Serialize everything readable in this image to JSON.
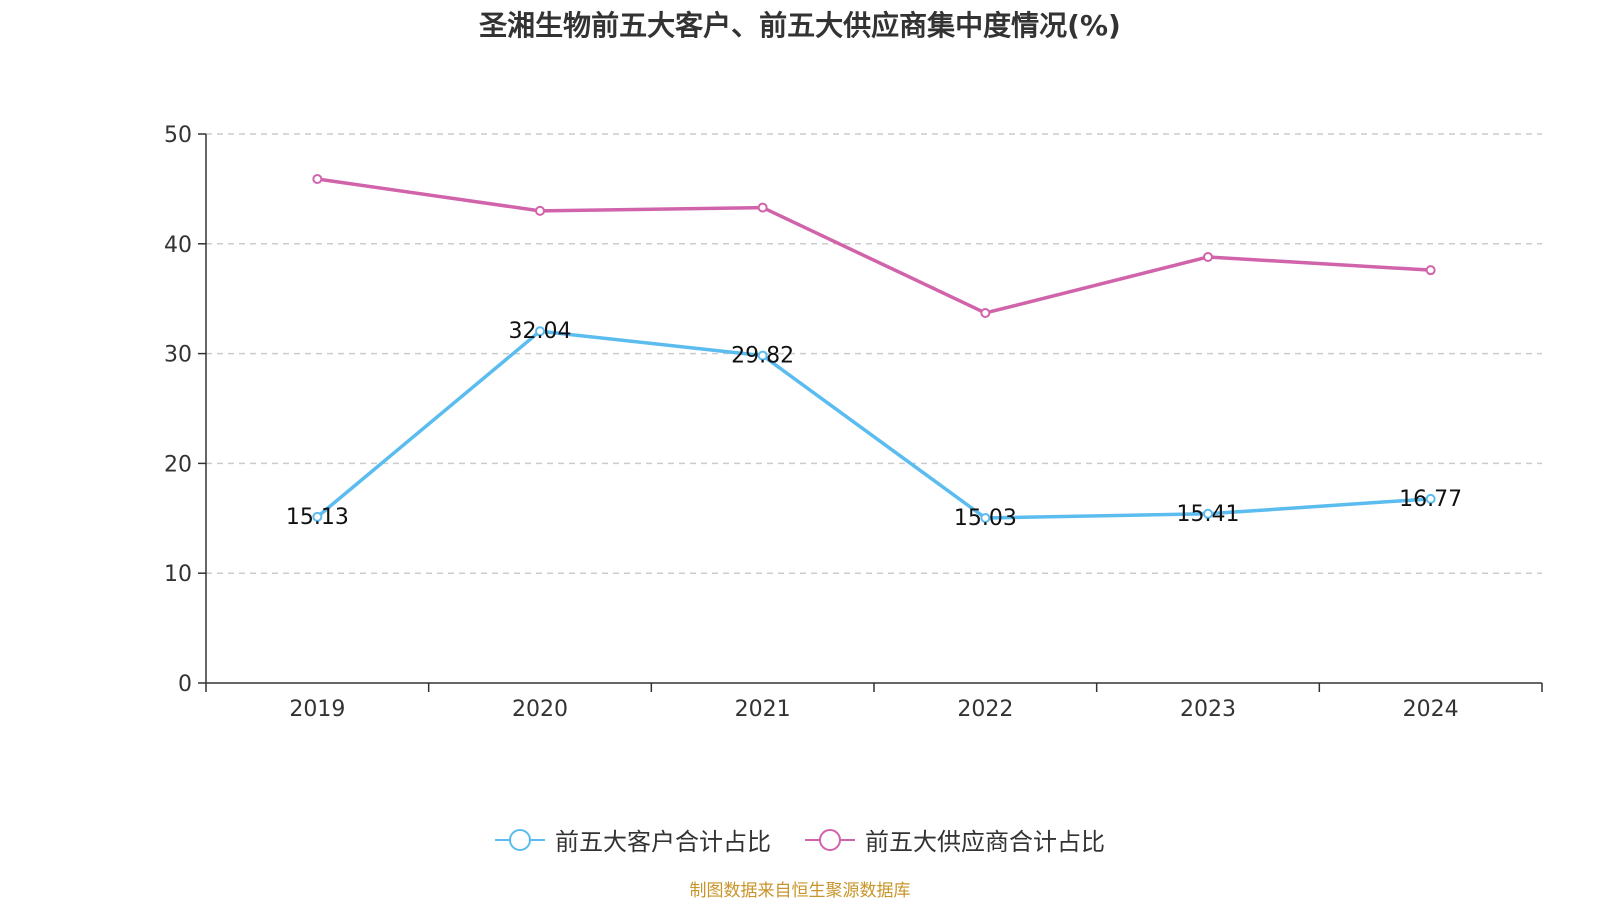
{
  "chart_data": {
    "type": "line",
    "title": "圣湘生物前五大客户、前五大供应商集中度情况(%)",
    "categories": [
      "2019",
      "2020",
      "2021",
      "2022",
      "2023",
      "2024"
    ],
    "ylim": [
      0,
      50
    ],
    "yticks": [
      0,
      10,
      20,
      30,
      40,
      50
    ],
    "grid": true,
    "legend_position": "bottom",
    "series": [
      {
        "name": "前五大客户合计占比",
        "color": "#5bbcef",
        "values": [
          15.13,
          32.04,
          29.82,
          15.03,
          15.41,
          16.77
        ],
        "labels": [
          "15.13",
          "32.04",
          "29.82",
          "15.03",
          "15.41",
          "16.77"
        ],
        "show_labels": true
      },
      {
        "name": "前五大供应商合计占比",
        "color": "#d163ab",
        "values": [
          45.9,
          43.0,
          43.3,
          33.7,
          38.8,
          37.6
        ],
        "show_labels": false
      }
    ]
  },
  "source_text": "制图数据来自恒生聚源数据库"
}
